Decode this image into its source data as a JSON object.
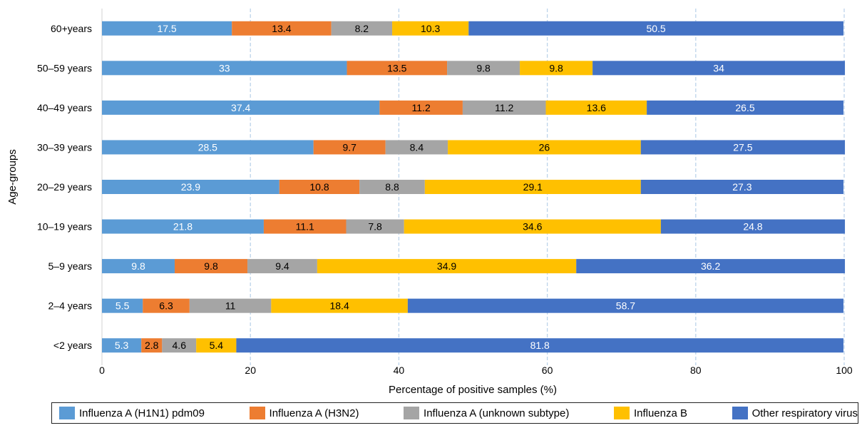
{
  "chart_data": {
    "type": "bar",
    "orientation": "horizontal",
    "stacked": true,
    "title": "",
    "xlabel": "Percentage of positive samples (%)",
    "ylabel": "Age-groups",
    "xlim": [
      0,
      100
    ],
    "xticks": [
      0,
      20,
      40,
      60,
      80,
      100
    ],
    "grid": "vertical dashed",
    "legend_placement": "bottom",
    "categories": [
      "60+years",
      "50–59 years",
      "40–49 years",
      "30–39 years",
      "20–29 years",
      "10–19 years",
      "5–9 years",
      "2–4 years",
      "<2 years"
    ],
    "series": [
      {
        "name": "Influenza A (H1N1) pdm09",
        "color": "#5b9bd5",
        "label_color": "#ffffff",
        "values": [
          17.5,
          33,
          37.4,
          28.5,
          23.9,
          21.8,
          9.8,
          5.5,
          5.3
        ]
      },
      {
        "name": "Influenza A (H3N2)",
        "color": "#ed7d31",
        "label_color": "#000000",
        "values": [
          13.4,
          13.5,
          11.2,
          9.7,
          10.8,
          11.1,
          9.8,
          6.3,
          2.8
        ]
      },
      {
        "name": "Influenza A (unknown subtype)",
        "color": "#a5a5a5",
        "label_color": "#000000",
        "values": [
          8.2,
          9.8,
          11.2,
          8.4,
          8.8,
          7.8,
          9.4,
          11,
          4.6
        ]
      },
      {
        "name": "Influenza B",
        "color": "#ffc000",
        "label_color": "#000000",
        "values": [
          10.3,
          9.8,
          13.6,
          26,
          29.1,
          34.6,
          34.9,
          18.4,
          5.4
        ]
      },
      {
        "name": "Other respiratory virus",
        "color": "#4472c4",
        "label_color": "#ffffff",
        "values": [
          50.5,
          34,
          26.5,
          27.5,
          27.3,
          24.8,
          36.2,
          58.7,
          81.8
        ]
      }
    ]
  }
}
